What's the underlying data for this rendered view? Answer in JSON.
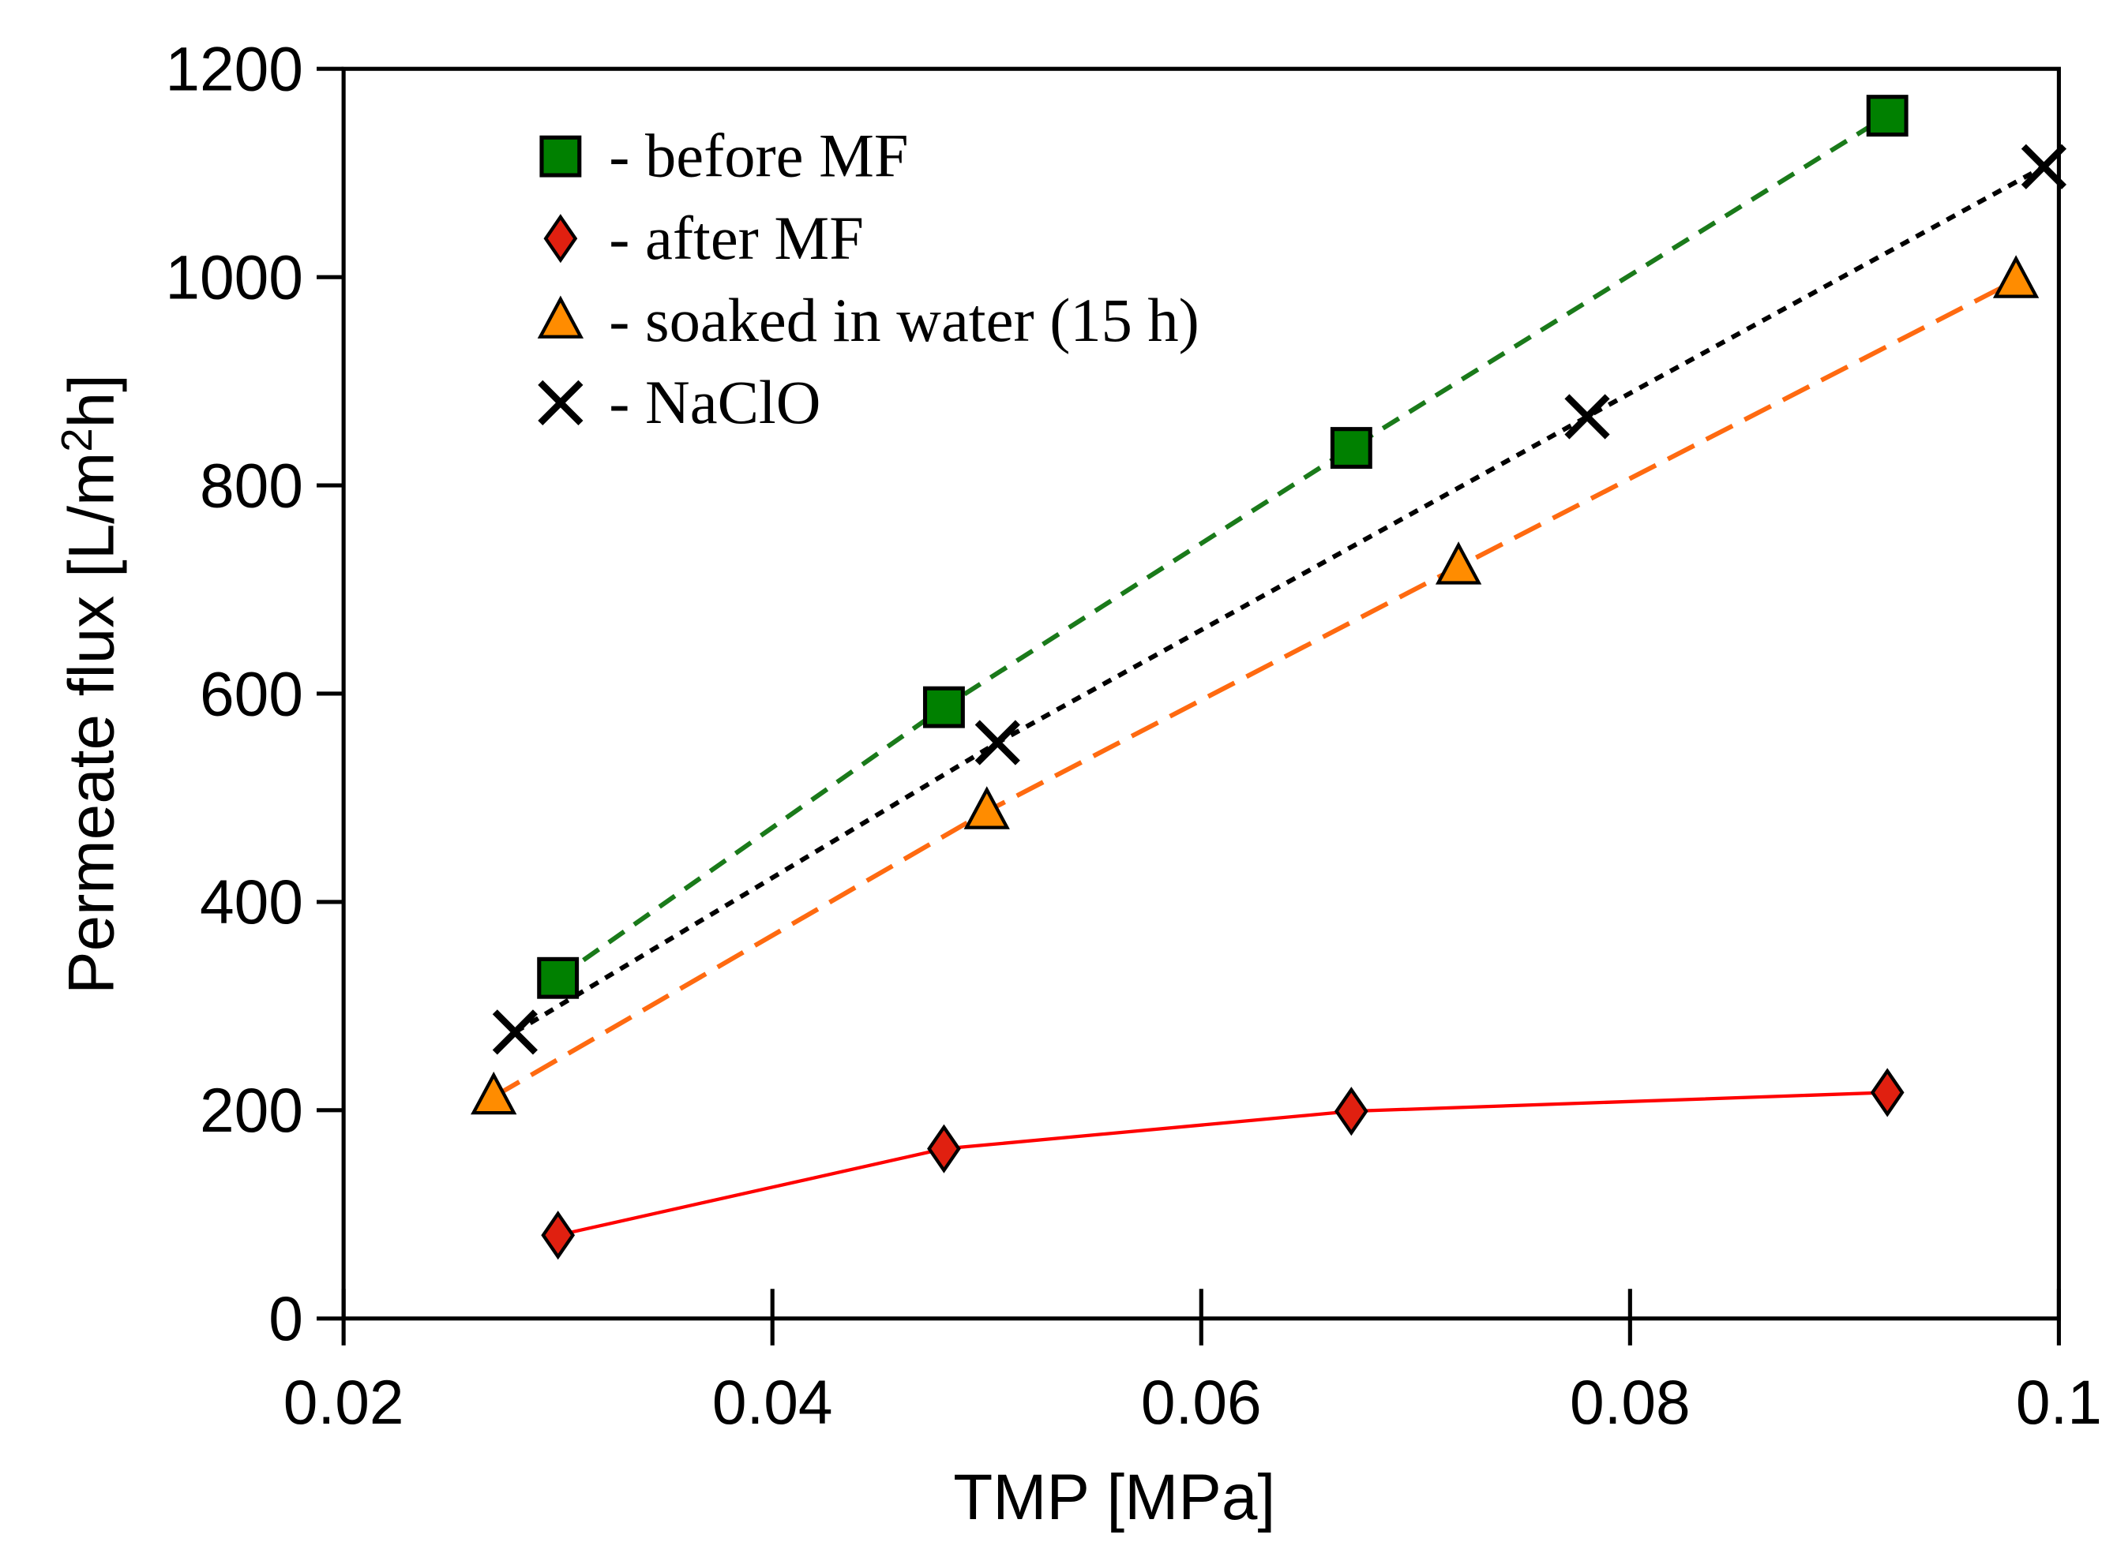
{
  "chart_data": {
    "type": "line",
    "title": "",
    "xlabel": "TMP [MPa]",
    "ylabel": "Permeate flux [L/m²h]",
    "ylabel_parts": {
      "main": "Permeate flux [L/m",
      "sup": "2",
      "end": "h]"
    },
    "xlim": [
      0.02,
      0.1
    ],
    "ylim": [
      0,
      1200
    ],
    "xticks": [
      "0.02",
      "0.04",
      "0.06",
      "0.08",
      "0.1"
    ],
    "xtick_values": [
      0.02,
      0.04,
      0.06,
      0.08,
      0.1
    ],
    "yticks": [
      "0",
      "200",
      "400",
      "600",
      "800",
      "1000",
      "1200"
    ],
    "ytick_values": [
      0,
      200,
      400,
      600,
      800,
      1000,
      1200
    ],
    "grid": false,
    "legend_position": "top-left",
    "series": [
      {
        "name": "- before MF",
        "marker": "square",
        "color": "#008000",
        "line_color": "#1a7a1a",
        "line": "dashed",
        "x": [
          0.03,
          0.048,
          0.067,
          0.092
        ],
        "y": [
          327,
          587,
          836,
          1155
        ]
      },
      {
        "name": "- after MF",
        "marker": "diamond",
        "color": "#e02010",
        "line_color": "#ff0000",
        "line": "solid",
        "x": [
          0.03,
          0.048,
          0.067,
          0.092
        ],
        "y": [
          80,
          163,
          199,
          217
        ]
      },
      {
        "name": "- soaked in water (15 h)",
        "marker": "triangle",
        "color": "#ff8c00",
        "line_color": "#ff6a10",
        "line": "longdash",
        "x": [
          0.027,
          0.05,
          0.072,
          0.098
        ],
        "y": [
          213,
          487,
          722,
          997
        ]
      },
      {
        "name": "- NaClO",
        "marker": "x",
        "color": "#000000",
        "line_color": "#000000",
        "line": "dotted",
        "x": [
          0.028,
          0.0505,
          0.078,
          0.0993
        ],
        "y": [
          275,
          553,
          866,
          1106
        ]
      }
    ]
  }
}
